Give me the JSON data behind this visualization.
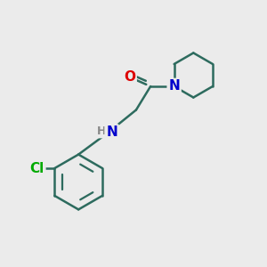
{
  "background_color": "#ebebeb",
  "bond_color": "#2d6b5e",
  "bond_width": 1.8,
  "atom_colors": {
    "O": "#dd0000",
    "N": "#0000cc",
    "Cl": "#00aa00",
    "H": "#888888"
  },
  "font_size_atoms": 11,
  "font_size_H": 9,
  "figsize": [
    3.0,
    3.0
  ],
  "dpi": 100,
  "xlim": [
    0,
    10
  ],
  "ylim": [
    0,
    10
  ]
}
